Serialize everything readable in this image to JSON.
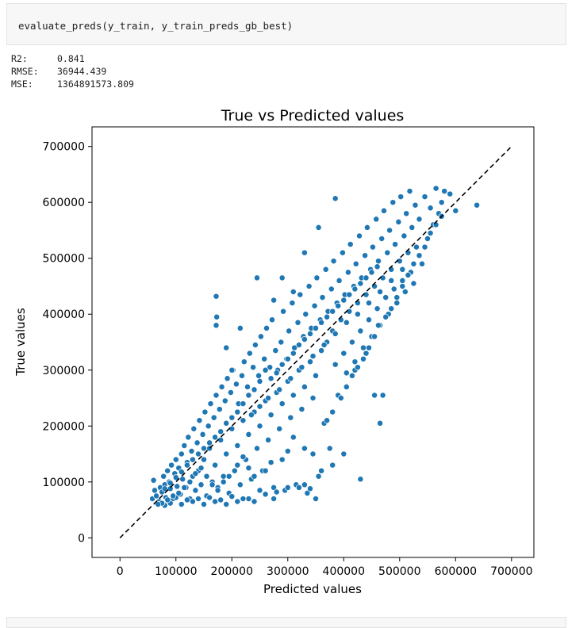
{
  "code_cell": {
    "source": "evaluate_preds(y_train, y_train_preds_gb_best)"
  },
  "output": {
    "metrics": [
      {
        "label": "R2:",
        "value": "0.841"
      },
      {
        "label": "RMSE:",
        "value": "36944.439"
      },
      {
        "label": "MSE:",
        "value": "1364891573.809"
      }
    ]
  },
  "chart_data": {
    "type": "scatter",
    "title": "True vs Predicted values",
    "xlabel": "Predicted values",
    "ylabel": "True values",
    "xlim": [
      -50000,
      740000
    ],
    "ylim": [
      -35000,
      735000
    ],
    "xticks": [
      0,
      100000,
      200000,
      300000,
      400000,
      500000,
      600000,
      700000
    ],
    "yticks": [
      0,
      100000,
      200000,
      300000,
      400000,
      500000,
      600000,
      700000
    ],
    "xtick_labels": [
      "0",
      "100000",
      "200000",
      "300000",
      "400000",
      "500000",
      "600000",
      "700000"
    ],
    "ytick_labels": [
      "0",
      "100000",
      "200000",
      "300000",
      "400000",
      "500000",
      "600000",
      "700000"
    ],
    "reference_line": {
      "x": [
        0,
        700000
      ],
      "y": [
        0,
        700000
      ],
      "style": "dashed",
      "color": "#000000"
    },
    "point_color": "#1f77b4",
    "grid": false,
    "points": [
      [
        60000,
        103000
      ],
      [
        58000,
        70000
      ],
      [
        62000,
        85000
      ],
      [
        65000,
        75000
      ],
      [
        70000,
        65000
      ],
      [
        72000,
        90000
      ],
      [
        75000,
        82000
      ],
      [
        78000,
        110000
      ],
      [
        80000,
        95000
      ],
      [
        82000,
        72000
      ],
      [
        85000,
        120000
      ],
      [
        88000,
        100000
      ],
      [
        90000,
        88000
      ],
      [
        92000,
        130000
      ],
      [
        95000,
        70000
      ],
      [
        98000,
        115000
      ],
      [
        100000,
        140000
      ],
      [
        102000,
        92000
      ],
      [
        105000,
        125000
      ],
      [
        108000,
        78000
      ],
      [
        110000,
        150000
      ],
      [
        112000,
        105000
      ],
      [
        115000,
        165000
      ],
      [
        118000,
        90000
      ],
      [
        120000,
        135000
      ],
      [
        122000,
        180000
      ],
      [
        125000,
        70000
      ],
      [
        128000,
        155000
      ],
      [
        130000,
        110000
      ],
      [
        132000,
        195000
      ],
      [
        135000,
        85000
      ],
      [
        138000,
        170000
      ],
      [
        140000,
        120000
      ],
      [
        142000,
        210000
      ],
      [
        145000,
        95000
      ],
      [
        148000,
        185000
      ],
      [
        150000,
        140000
      ],
      [
        152000,
        225000
      ],
      [
        155000,
        75000
      ],
      [
        158000,
        200000
      ],
      [
        160000,
        160000
      ],
      [
        162000,
        240000
      ],
      [
        165000,
        100000
      ],
      [
        168000,
        215000
      ],
      [
        170000,
        130000
      ],
      [
        172000,
        255000
      ],
      [
        175000,
        90000
      ],
      [
        178000,
        230000
      ],
      [
        180000,
        175000
      ],
      [
        182000,
        270000
      ],
      [
        185000,
        110000
      ],
      [
        188000,
        245000
      ],
      [
        190000,
        150000
      ],
      [
        192000,
        285000
      ],
      [
        195000,
        80000
      ],
      [
        198000,
        260000
      ],
      [
        200000,
        195000
      ],
      [
        202000,
        300000
      ],
      [
        205000,
        120000
      ],
      [
        208000,
        275000
      ],
      [
        210000,
        165000
      ],
      [
        212000,
        240000
      ],
      [
        215000,
        95000
      ],
      [
        218000,
        290000
      ],
      [
        220000,
        210000
      ],
      [
        222000,
        315000
      ],
      [
        225000,
        140000
      ],
      [
        228000,
        270000
      ],
      [
        230000,
        185000
      ],
      [
        232000,
        330000
      ],
      [
        235000,
        105000
      ],
      [
        238000,
        305000
      ],
      [
        240000,
        225000
      ],
      [
        242000,
        345000
      ],
      [
        245000,
        160000
      ],
      [
        248000,
        290000
      ],
      [
        250000,
        200000
      ],
      [
        252000,
        360000
      ],
      [
        255000,
        120000
      ],
      [
        258000,
        320000
      ],
      [
        260000,
        245000
      ],
      [
        262000,
        375000
      ],
      [
        265000,
        175000
      ],
      [
        268000,
        305000
      ],
      [
        270000,
        220000
      ],
      [
        272000,
        390000
      ],
      [
        275000,
        90000
      ],
      [
        278000,
        335000
      ],
      [
        280000,
        260000
      ],
      [
        282000,
        300000
      ],
      [
        285000,
        195000
      ],
      [
        288000,
        350000
      ],
      [
        290000,
        240000
      ],
      [
        292000,
        405000
      ],
      [
        295000,
        85000
      ],
      [
        298000,
        320000
      ],
      [
        300000,
        280000
      ],
      [
        302000,
        370000
      ],
      [
        305000,
        215000
      ],
      [
        308000,
        420000
      ],
      [
        310000,
        255000
      ],
      [
        312000,
        340000
      ],
      [
        315000,
        95000
      ],
      [
        318000,
        385000
      ],
      [
        320000,
        300000
      ],
      [
        322000,
        435000
      ],
      [
        325000,
        230000
      ],
      [
        328000,
        360000
      ],
      [
        330000,
        270000
      ],
      [
        332000,
        400000
      ],
      [
        335000,
        80000
      ],
      [
        338000,
        450000
      ],
      [
        340000,
        315000
      ],
      [
        342000,
        375000
      ],
      [
        345000,
        250000
      ],
      [
        348000,
        415000
      ],
      [
        350000,
        290000
      ],
      [
        352000,
        465000
      ],
      [
        355000,
        110000
      ],
      [
        358000,
        390000
      ],
      [
        360000,
        335000
      ],
      [
        362000,
        430000
      ],
      [
        365000,
        205000
      ],
      [
        368000,
        480000
      ],
      [
        370000,
        350000
      ],
      [
        372000,
        405000
      ],
      [
        375000,
        160000
      ],
      [
        378000,
        445000
      ],
      [
        380000,
        370000
      ],
      [
        382000,
        495000
      ],
      [
        385000,
        310000
      ],
      [
        388000,
        420000
      ],
      [
        390000,
        255000
      ],
      [
        392000,
        460000
      ],
      [
        395000,
        390000
      ],
      [
        398000,
        510000
      ],
      [
        400000,
        330000
      ],
      [
        402000,
        435000
      ],
      [
        405000,
        295000
      ],
      [
        408000,
        475000
      ],
      [
        410000,
        405000
      ],
      [
        412000,
        525000
      ],
      [
        415000,
        350000
      ],
      [
        418000,
        450000
      ],
      [
        420000,
        315000
      ],
      [
        422000,
        490000
      ],
      [
        425000,
        420000
      ],
      [
        428000,
        540000
      ],
      [
        430000,
        370000
      ],
      [
        432000,
        465000
      ],
      [
        435000,
        340000
      ],
      [
        438000,
        505000
      ],
      [
        440000,
        435000
      ],
      [
        442000,
        555000
      ],
      [
        445000,
        390000
      ],
      [
        448000,
        480000
      ],
      [
        450000,
        360000
      ],
      [
        452000,
        520000
      ],
      [
        455000,
        450000
      ],
      [
        458000,
        570000
      ],
      [
        460000,
        410000
      ],
      [
        462000,
        495000
      ],
      [
        465000,
        380000
      ],
      [
        468000,
        535000
      ],
      [
        470000,
        465000
      ],
      [
        472000,
        585000
      ],
      [
        475000,
        430000
      ],
      [
        478000,
        510000
      ],
      [
        480000,
        400000
      ],
      [
        482000,
        550000
      ],
      [
        485000,
        480000
      ],
      [
        488000,
        600000
      ],
      [
        490000,
        445000
      ],
      [
        492000,
        525000
      ],
      [
        495000,
        420000
      ],
      [
        498000,
        565000
      ],
      [
        500000,
        495000
      ],
      [
        502000,
        610000
      ],
      [
        505000,
        460000
      ],
      [
        508000,
        540000
      ],
      [
        510000,
        440000
      ],
      [
        512000,
        580000
      ],
      [
        515000,
        510000
      ],
      [
        518000,
        620000
      ],
      [
        520000,
        475000
      ],
      [
        522000,
        555000
      ],
      [
        525000,
        455000
      ],
      [
        528000,
        595000
      ],
      [
        530000,
        520000
      ],
      [
        535000,
        570000
      ],
      [
        540000,
        490000
      ],
      [
        545000,
        610000
      ],
      [
        550000,
        535000
      ],
      [
        555000,
        590000
      ],
      [
        560000,
        560000
      ],
      [
        565000,
        625000
      ],
      [
        570000,
        580000
      ],
      [
        575000,
        600000
      ],
      [
        580000,
        620000
      ],
      [
        590000,
        615000
      ],
      [
        600000,
        585000
      ],
      [
        638000,
        595000
      ],
      [
        385000,
        607000
      ],
      [
        430000,
        105000
      ],
      [
        172000,
        432000
      ],
      [
        173000,
        395000
      ],
      [
        172000,
        380000
      ],
      [
        190000,
        340000
      ],
      [
        200000,
        300000
      ],
      [
        215000,
        375000
      ],
      [
        245000,
        465000
      ],
      [
        275000,
        425000
      ],
      [
        290000,
        465000
      ],
      [
        310000,
        440000
      ],
      [
        330000,
        510000
      ],
      [
        355000,
        555000
      ],
      [
        420000,
        300000
      ],
      [
        440000,
        330000
      ],
      [
        455000,
        255000
      ],
      [
        465000,
        205000
      ],
      [
        470000,
        255000
      ],
      [
        400000,
        150000
      ],
      [
        380000,
        130000
      ],
      [
        360000,
        120000
      ],
      [
        330000,
        95000
      ],
      [
        300000,
        90000
      ],
      [
        275000,
        70000
      ],
      [
        250000,
        85000
      ],
      [
        230000,
        70000
      ],
      [
        210000,
        65000
      ],
      [
        190000,
        60000
      ],
      [
        170000,
        65000
      ],
      [
        150000,
        60000
      ],
      [
        130000,
        65000
      ],
      [
        110000,
        60000
      ],
      [
        90000,
        62000
      ],
      [
        80000,
        58000
      ],
      [
        100000,
        72000
      ],
      [
        120000,
        68000
      ],
      [
        140000,
        70000
      ],
      [
        160000,
        72000
      ],
      [
        180000,
        68000
      ],
      [
        200000,
        74000
      ],
      [
        220000,
        70000
      ],
      [
        240000,
        65000
      ],
      [
        260000,
        78000
      ],
      [
        280000,
        82000
      ],
      [
        320000,
        90000
      ],
      [
        340000,
        88000
      ],
      [
        350000,
        70000
      ],
      [
        345000,
        150000
      ],
      [
        330000,
        160000
      ],
      [
        310000,
        180000
      ],
      [
        300000,
        155000
      ],
      [
        290000,
        140000
      ],
      [
        270000,
        135000
      ],
      [
        260000,
        120000
      ],
      [
        240000,
        110000
      ],
      [
        230000,
        125000
      ],
      [
        220000,
        145000
      ],
      [
        210000,
        130000
      ],
      [
        195000,
        110000
      ],
      [
        185000,
        100000
      ],
      [
        175000,
        85000
      ],
      [
        165000,
        95000
      ],
      [
        155000,
        110000
      ],
      [
        145000,
        125000
      ],
      [
        135000,
        115000
      ],
      [
        125000,
        100000
      ],
      [
        115000,
        90000
      ],
      [
        105000,
        80000
      ],
      [
        95000,
        75000
      ],
      [
        85000,
        68000
      ],
      [
        75000,
        62000
      ],
      [
        68000,
        60000
      ],
      [
        370000,
        210000
      ],
      [
        380000,
        225000
      ],
      [
        395000,
        250000
      ],
      [
        405000,
        270000
      ],
      [
        415000,
        290000
      ],
      [
        425000,
        305000
      ],
      [
        435000,
        320000
      ],
      [
        445000,
        340000
      ],
      [
        455000,
        360000
      ],
      [
        462000,
        380000
      ],
      [
        475000,
        395000
      ],
      [
        485000,
        410000
      ],
      [
        495000,
        430000
      ],
      [
        505000,
        450000
      ],
      [
        515000,
        470000
      ],
      [
        525000,
        490000
      ],
      [
        535000,
        505000
      ],
      [
        545000,
        520000
      ],
      [
        555000,
        545000
      ],
      [
        565000,
        560000
      ],
      [
        575000,
        575000
      ],
      [
        260000,
        300000
      ],
      [
        250000,
        280000
      ],
      [
        240000,
        265000
      ],
      [
        230000,
        255000
      ],
      [
        220000,
        240000
      ],
      [
        210000,
        225000
      ],
      [
        200000,
        215000
      ],
      [
        190000,
        205000
      ],
      [
        180000,
        190000
      ],
      [
        170000,
        180000
      ],
      [
        160000,
        170000
      ],
      [
        150000,
        160000
      ],
      [
        140000,
        150000
      ],
      [
        130000,
        140000
      ],
      [
        120000,
        130000
      ],
      [
        110000,
        118000
      ],
      [
        100000,
        108000
      ],
      [
        90000,
        98000
      ],
      [
        80000,
        88000
      ],
      [
        320000,
        345000
      ],
      [
        330000,
        355000
      ],
      [
        340000,
        365000
      ],
      [
        350000,
        375000
      ],
      [
        360000,
        385000
      ],
      [
        370000,
        395000
      ],
      [
        380000,
        405000
      ],
      [
        390000,
        415000
      ],
      [
        400000,
        425000
      ],
      [
        410000,
        435000
      ],
      [
        420000,
        445000
      ],
      [
        430000,
        455000
      ],
      [
        440000,
        465000
      ],
      [
        450000,
        475000
      ],
      [
        460000,
        485000
      ],
      [
        300000,
        320000
      ],
      [
        310000,
        330000
      ],
      [
        290000,
        310000
      ],
      [
        280000,
        295000
      ],
      [
        270000,
        285000
      ],
      [
        265000,
        250000
      ],
      [
        285000,
        265000
      ],
      [
        305000,
        285000
      ],
      [
        325000,
        305000
      ],
      [
        345000,
        325000
      ],
      [
        365000,
        345000
      ],
      [
        385000,
        365000
      ],
      [
        405000,
        385000
      ],
      [
        425000,
        400000
      ],
      [
        445000,
        420000
      ],
      [
        465000,
        440000
      ],
      [
        485000,
        460000
      ],
      [
        505000,
        480000
      ],
      [
        250000,
        235000
      ],
      [
        235000,
        220000
      ]
    ]
  }
}
